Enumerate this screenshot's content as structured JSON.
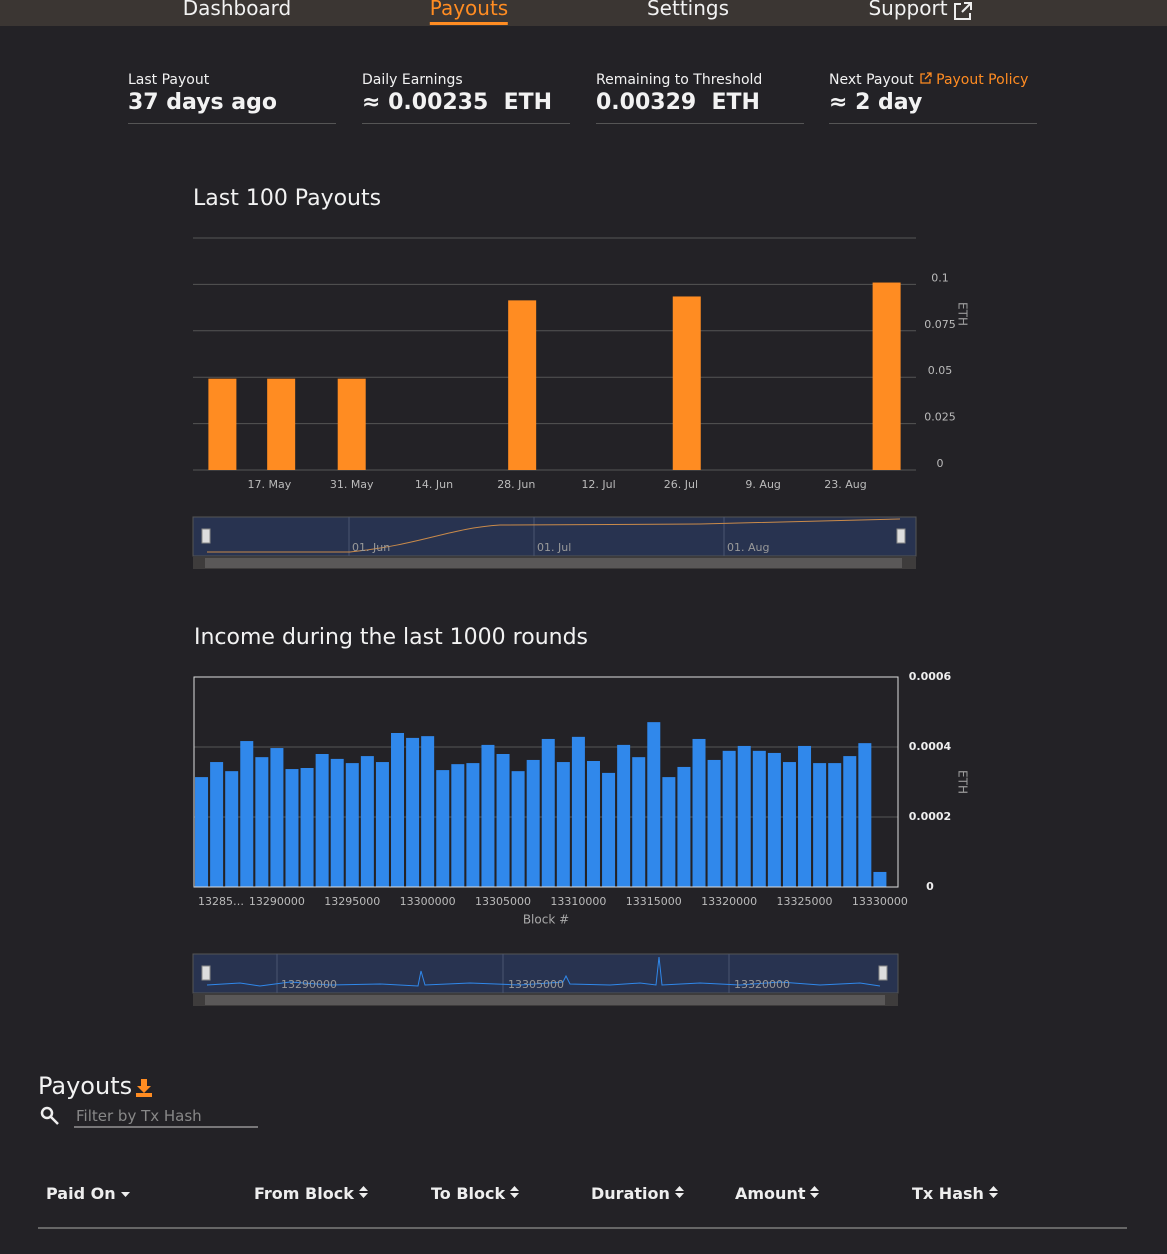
{
  "nav": {
    "items": [
      "Dashboard",
      "Payouts",
      "Settings",
      "Support"
    ],
    "active": 1
  },
  "stats": [
    {
      "label": "Last Payout",
      "value": "37 days ago"
    },
    {
      "label": "Daily Earnings",
      "value": "≈ 0.00235  ETH"
    },
    {
      "label": "Remaining to Threshold",
      "value": "0.00329  ETH"
    },
    {
      "label": "Next Payout",
      "link": "Payout Policy",
      "value": "≈ 2 day"
    }
  ],
  "chart_data": [
    {
      "type": "bar",
      "title": "Last 100 Payouts",
      "y_label": "ETH",
      "color": "#ff8c22",
      "grid": true,
      "x": [
        129,
        139,
        151,
        180,
        208,
        242
      ],
      "values": [
        0.0492,
        0.0492,
        0.0492,
        0.0914,
        0.0935,
        0.101
      ],
      "xlim": [
        124,
        247
      ],
      "xticks": [
        {
          "value": 137,
          "label": "17. May"
        },
        {
          "value": 151,
          "label": "31. May"
        },
        {
          "value": 165,
          "label": "14. Jun"
        },
        {
          "value": 179,
          "label": "28. Jun"
        },
        {
          "value": 193,
          "label": "12. Jul"
        },
        {
          "value": 207,
          "label": "26. Jul"
        },
        {
          "value": 221,
          "label": "9. Aug"
        },
        {
          "value": 235,
          "label": "23. Aug"
        }
      ],
      "ylim": [
        0,
        0.125
      ],
      "yticks": [
        0,
        0.025,
        0.05,
        0.075,
        0.1
      ],
      "navigator_labels": [
        "01. Jun",
        "01. Jul",
        "01. Aug"
      ]
    },
    {
      "type": "bar",
      "title": "Income during the last 1000 rounds",
      "x_label": "Block #",
      "y_label": "ETH",
      "color": "#3088eb",
      "grid": true,
      "x": [
        13285000,
        13286000,
        13287000,
        13288000,
        13289000,
        13290000,
        13291000,
        13292000,
        13293000,
        13294000,
        13295000,
        13296000,
        13297000,
        13298000,
        13299000,
        13300000,
        13301000,
        13302000,
        13303000,
        13304000,
        13305000,
        13306000,
        13307000,
        13308000,
        13309000,
        13310000,
        13311000,
        13312000,
        13313000,
        13314000,
        13315000,
        13316000,
        13317000,
        13318000,
        13319000,
        13320000,
        13321000,
        13322000,
        13323000,
        13324000,
        13325000,
        13326000,
        13327000,
        13328000,
        13329000,
        13330000
      ],
      "values": [
        0.000314,
        0.000357,
        0.000331,
        0.000417,
        0.000371,
        0.000397,
        0.000337,
        0.00034,
        0.00038,
        0.000366,
        0.000354,
        0.000374,
        0.000357,
        0.00044,
        0.000426,
        0.000431,
        0.000334,
        0.000351,
        0.000354,
        0.000406,
        0.00038,
        0.000331,
        0.000363,
        0.000423,
        0.000357,
        0.000429,
        0.00036,
        0.000326,
        0.000406,
        0.000371,
        0.000471,
        0.000314,
        0.000343,
        0.000423,
        0.000363,
        0.000389,
        0.000403,
        0.000389,
        0.000383,
        0.000357,
        0.000403,
        0.000354,
        0.000354,
        0.000374,
        0.000411,
        4.3e-05
      ],
      "xlim": [
        13284500,
        13331200
      ],
      "xticks": [
        {
          "value": 13285000,
          "label": "13285…"
        },
        13290000,
        13295000,
        13300000,
        13305000,
        13310000,
        13315000,
        13320000,
        13325000,
        13330000
      ],
      "ylim": [
        0,
        0.0006
      ],
      "yticks": [
        0,
        0.0002,
        0.0004,
        0.0006
      ],
      "navigator_labels": [
        "13290000",
        "13305000",
        "13320000"
      ]
    }
  ],
  "payouts": {
    "title": "Payouts",
    "filter_placeholder": "Filter by Tx Hash",
    "columns": [
      "Paid On",
      "From Block",
      "To Block",
      "Duration",
      "Amount",
      "Tx Hash"
    ]
  }
}
